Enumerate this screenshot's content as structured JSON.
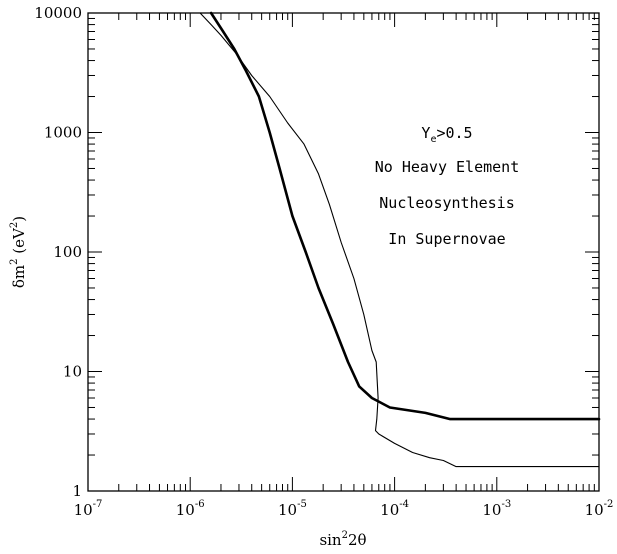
{
  "chart_data": {
    "type": "line",
    "title": "",
    "xlabel": {
      "base": "sin",
      "sup": "2",
      "tail": "2θ"
    },
    "ylabel": {
      "main": "δm",
      "sup": "2",
      "mid": " (eV",
      "sup2": "2",
      "end": ")"
    },
    "x_scale": "log",
    "y_scale": "log",
    "xlim": [
      1e-07,
      0.01
    ],
    "ylim": [
      1,
      10000
    ],
    "grid": false,
    "x_ticks": [
      {
        "value": 1e-07,
        "base": "10",
        "exp": "-7"
      },
      {
        "value": 1e-06,
        "base": "10",
        "exp": "-6"
      },
      {
        "value": 1e-05,
        "base": "10",
        "exp": "-5"
      },
      {
        "value": 0.0001,
        "base": "10",
        "exp": "-4"
      },
      {
        "value": 0.001,
        "base": "10",
        "exp": "-3"
      },
      {
        "value": 0.01,
        "base": "10",
        "exp": "-2"
      }
    ],
    "y_ticks": [
      {
        "value": 1,
        "label": "1"
      },
      {
        "value": 10,
        "label": "10"
      },
      {
        "value": 100,
        "label": "100"
      },
      {
        "value": 1000,
        "label": "1000"
      },
      {
        "value": 10000,
        "label": "10000"
      }
    ],
    "annotation": {
      "line1": {
        "main": "Y",
        "sub": "e",
        "tail": ">0.5"
      },
      "line2": "No Heavy Element",
      "line3": "Nucleosynthesis",
      "line4": "In Supernovae"
    },
    "series": [
      {
        "style": "thick",
        "color": "#000000",
        "points": [
          [
            1.6e-06,
            10000
          ],
          [
            2.1e-06,
            7000
          ],
          [
            2.7e-06,
            5000
          ],
          [
            3.5e-06,
            3300
          ],
          [
            4.7e-06,
            2000
          ],
          [
            6e-06,
            1000
          ],
          [
            7.5e-06,
            500
          ],
          [
            1e-05,
            200
          ],
          [
            1.35e-05,
            100
          ],
          [
            1.8e-05,
            50
          ],
          [
            2.5e-05,
            25
          ],
          [
            3.5e-05,
            12
          ],
          [
            4.5e-05,
            7.5
          ],
          [
            6e-05,
            6
          ],
          [
            9e-05,
            5
          ],
          [
            0.0002,
            4.5
          ],
          [
            0.00035,
            4
          ],
          [
            0.001,
            4
          ],
          [
            0.01,
            4
          ]
        ]
      },
      {
        "style": "thin",
        "color": "#000000",
        "points": [
          [
            1.25e-06,
            10000
          ],
          [
            1.6e-06,
            8000
          ],
          [
            2e-06,
            6500
          ],
          [
            2.8e-06,
            4600
          ],
          [
            4e-06,
            3000
          ],
          [
            6e-06,
            2000
          ],
          [
            9e-06,
            1200
          ],
          [
            1.3e-05,
            800
          ],
          [
            1.8e-05,
            450
          ],
          [
            2.3e-05,
            250
          ],
          [
            3e-05,
            120
          ],
          [
            4e-05,
            60
          ],
          [
            5e-05,
            30
          ],
          [
            6e-05,
            15
          ],
          [
            6.6e-05,
            12
          ],
          [
            6.9e-05,
            6
          ],
          [
            6.7e-05,
            4
          ],
          [
            6.5e-05,
            3.2
          ],
          [
            7e-05,
            3
          ],
          [
            0.0001,
            2.5
          ],
          [
            0.00015,
            2.1
          ],
          [
            0.00022,
            1.9
          ],
          [
            0.0003,
            1.8
          ],
          [
            0.0004,
            1.6
          ],
          [
            0.001,
            1.6
          ],
          [
            0.01,
            1.6
          ]
        ]
      }
    ]
  }
}
